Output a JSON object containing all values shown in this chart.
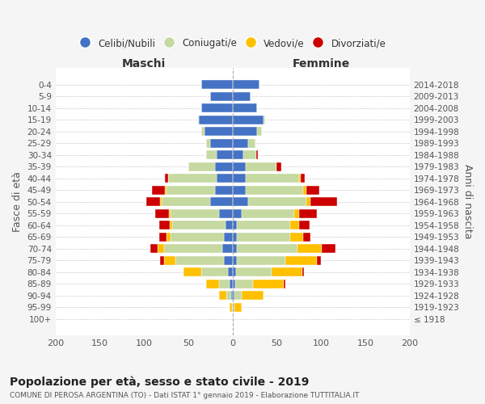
{
  "age_groups": [
    "100+",
    "95-99",
    "90-94",
    "85-89",
    "80-84",
    "75-79",
    "70-74",
    "65-69",
    "60-64",
    "55-59",
    "50-54",
    "45-49",
    "40-44",
    "35-39",
    "30-34",
    "25-29",
    "20-24",
    "15-19",
    "10-14",
    "5-9",
    "0-4"
  ],
  "birth_years": [
    "≤ 1918",
    "1919-1923",
    "1924-1928",
    "1929-1933",
    "1934-1938",
    "1939-1943",
    "1944-1948",
    "1949-1953",
    "1954-1958",
    "1959-1963",
    "1964-1968",
    "1969-1973",
    "1974-1978",
    "1979-1983",
    "1984-1988",
    "1989-1993",
    "1994-1998",
    "1999-2003",
    "2004-2008",
    "2009-2013",
    "2014-2018"
  ],
  "male": {
    "celibi": [
      0,
      0,
      2,
      3,
      5,
      10,
      12,
      10,
      8,
      15,
      25,
      20,
      18,
      20,
      18,
      25,
      32,
      38,
      35,
      25,
      35
    ],
    "coniugati": [
      0,
      1,
      5,
      12,
      30,
      55,
      65,
      60,
      60,
      55,
      55,
      55,
      55,
      30,
      12,
      5,
      3,
      1,
      0,
      0,
      0
    ],
    "vedovi": [
      0,
      2,
      8,
      15,
      20,
      12,
      8,
      5,
      3,
      2,
      2,
      1,
      0,
      0,
      0,
      0,
      0,
      0,
      0,
      0,
      0
    ],
    "divorziati": [
      0,
      0,
      0,
      0,
      0,
      5,
      8,
      8,
      12,
      15,
      15,
      15,
      3,
      0,
      0,
      0,
      0,
      0,
      0,
      0,
      0
    ]
  },
  "female": {
    "nubili": [
      0,
      0,
      2,
      3,
      4,
      5,
      5,
      5,
      5,
      10,
      18,
      15,
      15,
      15,
      12,
      18,
      28,
      35,
      28,
      20,
      30
    ],
    "coniugate": [
      0,
      2,
      8,
      20,
      40,
      55,
      68,
      60,
      60,
      60,
      65,
      65,
      60,
      35,
      15,
      8,
      5,
      2,
      0,
      0,
      0
    ],
    "vedove": [
      1,
      8,
      25,
      35,
      35,
      35,
      28,
      15,
      10,
      5,
      5,
      3,
      2,
      0,
      0,
      0,
      0,
      0,
      0,
      0,
      0
    ],
    "divorziate": [
      0,
      0,
      0,
      2,
      2,
      5,
      15,
      8,
      12,
      20,
      30,
      15,
      5,
      5,
      2,
      0,
      0,
      0,
      0,
      0,
      0
    ]
  },
  "colors": {
    "celibi": "#4472c4",
    "coniugati": "#c5d9a0",
    "vedovi": "#ffc000",
    "divorziati": "#cc0000"
  },
  "title": "Popolazione per età, sesso e stato civile - 2019",
  "subtitle": "COMUNE DI PEROSA ARGENTINA (TO) - Dati ISTAT 1° gennaio 2019 - Elaborazione TUTTITALIA.IT",
  "xlabel_left": "Maschi",
  "xlabel_right": "Femmine",
  "ylabel_left": "Fasce di età",
  "ylabel_right": "Anni di nascita",
  "xlim": 200,
  "bg_color": "#f5f5f5",
  "plot_bg_color": "#ffffff",
  "legend_labels": [
    "Celibi/Nubili",
    "Coniugati/e",
    "Vedovi/e",
    "Divorziati/e"
  ]
}
